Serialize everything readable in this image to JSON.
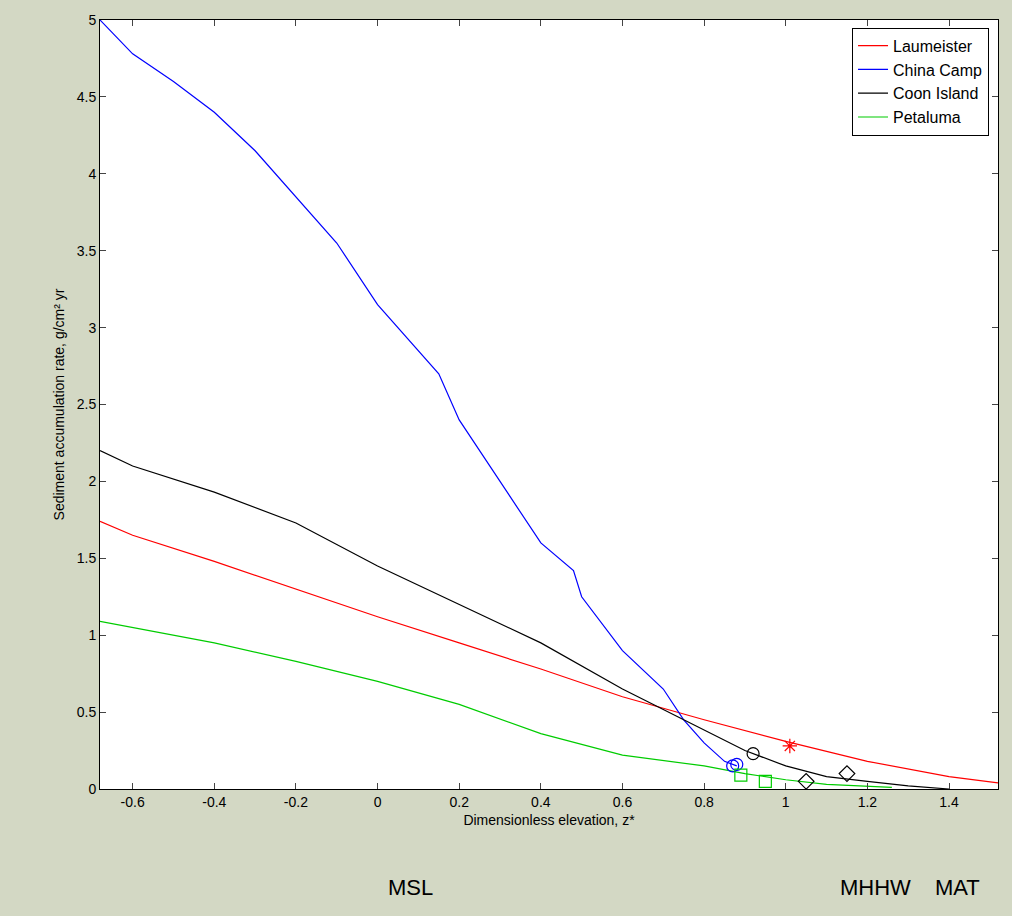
{
  "chart_data": {
    "type": "line",
    "x_label": "Dimensionless elevation, z*",
    "y_label": "Sediment accumulation rate, g/cm² yr",
    "xlim": [
      -0.68,
      1.52
    ],
    "xticks": [
      -0.6,
      -0.4,
      -0.2,
      0,
      0.2,
      0.4,
      0.6,
      0.8,
      1,
      1.2,
      1.4
    ],
    "ylim": [
      0,
      5
    ],
    "yticks": [
      0,
      0.5,
      1,
      1.5,
      2,
      2.5,
      3,
      3.5,
      4,
      4.5,
      5
    ],
    "grid": false,
    "legend": "top right",
    "series": [
      {
        "name": "Laumeister",
        "color": "#ff0000",
        "x": [
          -0.68,
          -0.6,
          -0.4,
          -0.2,
          0,
          0.2,
          0.4,
          0.6,
          0.8,
          1.0,
          1.2,
          1.4,
          1.52
        ],
        "values": [
          1.74,
          1.65,
          1.48,
          1.3,
          1.12,
          0.95,
          0.78,
          0.6,
          0.45,
          0.31,
          0.18,
          0.08,
          0.04
        ],
        "points": [
          {
            "marker": "star",
            "x": [
              1.01
            ],
            "values": [
              0.28
            ]
          }
        ]
      },
      {
        "name": "China Camp",
        "color": "#0000ff",
        "x": [
          -0.68,
          -0.6,
          -0.5,
          -0.4,
          -0.3,
          -0.2,
          -0.15,
          -0.1,
          0,
          0.1,
          0.15,
          0.2,
          0.3,
          0.4,
          0.48,
          0.5,
          0.6,
          0.7,
          0.75,
          0.8,
          0.85,
          0.88
        ],
        "values": [
          5.0,
          4.78,
          4.6,
          4.4,
          4.15,
          3.85,
          3.7,
          3.55,
          3.15,
          2.85,
          2.7,
          2.4,
          2.0,
          1.6,
          1.42,
          1.25,
          0.9,
          0.65,
          0.45,
          0.3,
          0.18,
          0.15
        ],
        "points": [
          {
            "marker": "circle",
            "x": [
              0.87,
              0.88
            ],
            "values": [
              0.15,
              0.16
            ]
          }
        ]
      },
      {
        "name": "Coon Island",
        "color": "#000000",
        "x": [
          -0.68,
          -0.6,
          -0.4,
          -0.2,
          0,
          0.2,
          0.4,
          0.6,
          0.8,
          0.9,
          1.0,
          1.1,
          1.2,
          1.3,
          1.4
        ],
        "values": [
          2.2,
          2.1,
          1.93,
          1.73,
          1.45,
          1.2,
          0.95,
          0.65,
          0.38,
          0.25,
          0.15,
          0.08,
          0.05,
          0.02,
          0.0
        ],
        "points": [
          {
            "marker": "circle",
            "x": [
              0.92
            ],
            "values": [
              0.23
            ]
          },
          {
            "marker": "diamond",
            "x": [
              1.05,
              1.15
            ],
            "values": [
              0.05,
              0.1
            ]
          }
        ]
      },
      {
        "name": "Petaluma",
        "color": "#00cc00",
        "x": [
          -0.68,
          -0.6,
          -0.5,
          -0.4,
          -0.2,
          0,
          0.2,
          0.4,
          0.6,
          0.8,
          0.9,
          1.0,
          1.1,
          1.2,
          1.26
        ],
        "values": [
          1.09,
          1.05,
          1.0,
          0.95,
          0.83,
          0.7,
          0.55,
          0.36,
          0.22,
          0.15,
          0.1,
          0.06,
          0.03,
          0.02,
          0.01
        ],
        "points": [
          {
            "marker": "square",
            "x": [
              0.89,
              0.95
            ],
            "values": [
              0.09,
              0.05
            ]
          }
        ]
      }
    ],
    "annotations": [
      {
        "text": "MSL",
        "x": 0.08
      },
      {
        "text": "MHHW",
        "x": 1.22
      },
      {
        "text": "MAT",
        "x": 1.42
      }
    ]
  }
}
